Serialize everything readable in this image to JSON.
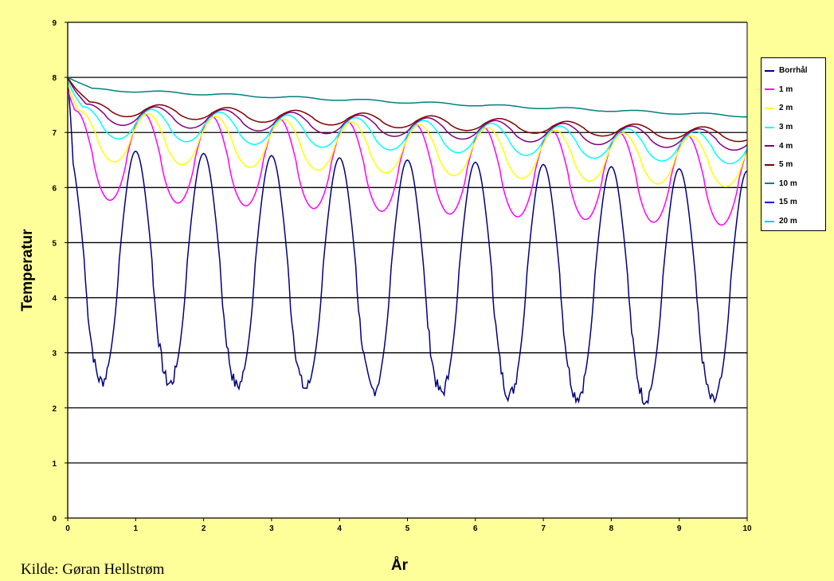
{
  "chart_data": {
    "type": "line",
    "title": "",
    "xlabel": "År",
    "ylabel": "Temperatur",
    "xlim": [
      0,
      10
    ],
    "ylim": [
      0,
      9
    ],
    "x_ticks": [
      "0",
      "1",
      "2",
      "3",
      "4",
      "5",
      "6",
      "7",
      "8",
      "9",
      "10"
    ],
    "y_ticks": [
      "0",
      "1",
      "2",
      "3",
      "4",
      "5",
      "6",
      "7",
      "8",
      "9"
    ],
    "grid": "horizontal",
    "legend_position": "right",
    "period": 1,
    "series": [
      {
        "name": "Borrhål",
        "color": "#000080",
        "start": 8.0,
        "mean_start": 4.6,
        "mean_end": 4.2,
        "amplitude": 2.1,
        "phase_max": 0.0,
        "noise": true
      },
      {
        "name": "1 m",
        "color": "#ff00ff",
        "start": 7.8,
        "mean_start": 6.6,
        "mean_end": 6.1,
        "amplitude": 0.8,
        "phase_max": 0.12
      },
      {
        "name": "2 m",
        "color": "#ffff00",
        "start": 7.9,
        "mean_start": 6.95,
        "mean_end": 6.45,
        "amplitude": 0.45,
        "phase_max": 0.18
      },
      {
        "name": "3 m",
        "color": "#00ffff",
        "start": 7.95,
        "mean_start": 7.2,
        "mean_end": 6.7,
        "amplitude": 0.28,
        "phase_max": 0.24
      },
      {
        "name": "4 m",
        "color": "#800080",
        "start": 8.0,
        "mean_start": 7.35,
        "mean_end": 6.85,
        "amplitude": 0.18,
        "phase_max": 0.3
      },
      {
        "name": "5 m",
        "color": "#800000",
        "start": 8.0,
        "mean_start": 7.45,
        "mean_end": 6.95,
        "amplitude": 0.12,
        "phase_max": 0.36
      },
      {
        "name": "10 m",
        "color": "#008080",
        "start": 8.0,
        "mean_start": 7.8,
        "mean_end": 7.3,
        "amplitude": 0.02,
        "phase_max": 0.4
      },
      {
        "name": "15 m",
        "color": "#0000ff",
        "start": 8.0,
        "mean_start": 7.95,
        "mean_end": 7.52,
        "amplitude": 0.0,
        "phase_max": 0.0
      },
      {
        "name": "20 m",
        "color": "#00ccff",
        "start": 8.0,
        "mean_start": 8.0,
        "mean_end": 7.63,
        "amplitude": 0.0,
        "phase_max": 0.0
      }
    ]
  },
  "source_text": "Kilde: Gøran Hellstrøm"
}
